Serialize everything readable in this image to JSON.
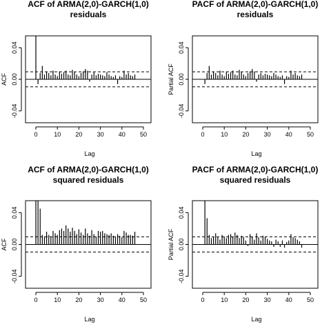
{
  "chart_data": [
    {
      "type": "bar",
      "title": [
        "ACF of ARMA(2,0)-GARCH(1,0)",
        "residuals"
      ],
      "xlabel": "Lag",
      "ylabel": "ACF",
      "xlim": [
        0,
        50
      ],
      "ylim": [
        -0.055,
        0.055
      ],
      "x_ticks": [
        "0",
        "10",
        "20",
        "30",
        "40",
        "50"
      ],
      "y_ticks": [
        "-0.04",
        "0.00",
        "0.04"
      ],
      "ci": 0.0095,
      "lags": [
        0,
        1,
        2,
        3,
        4,
        5,
        6,
        7,
        8,
        9,
        10,
        11,
        12,
        13,
        14,
        15,
        16,
        17,
        18,
        19,
        20,
        21,
        22,
        23,
        24,
        25,
        26,
        27,
        28,
        29,
        30,
        31,
        32,
        33,
        34,
        35,
        36,
        37,
        38,
        39,
        40,
        41,
        42,
        43,
        44,
        45,
        46
      ],
      "values": [
        0.055,
        -0.006,
        0.008,
        0.017,
        0.006,
        0.01,
        0.008,
        0.005,
        0.011,
        0.006,
        0.004,
        0.01,
        0.007,
        0.009,
        0.011,
        0.006,
        0.005,
        0.012,
        0.009,
        0.006,
        0.004,
        0.008,
        0.01,
        0.013,
        0.011,
        -0.003,
        0.006,
        0.009,
        0.005,
        0.007,
        0.006,
        0.005,
        0.004,
        0.009,
        0.006,
        0.004,
        0.003,
        0.005,
        -0.006,
        0.004,
        0.003,
        0.011,
        0.006,
        0.008,
        0.005,
        0.004,
        0.006
      ]
    },
    {
      "type": "bar",
      "title": [
        "PACF of ARMA(2,0)-GARCH(1,0)",
        "residuals"
      ],
      "xlabel": "Lag",
      "ylabel": "Partial ACF",
      "xlim": [
        0,
        50
      ],
      "ylim": [
        -0.055,
        0.055
      ],
      "x_ticks": [
        "0",
        "10",
        "20",
        "30",
        "40",
        "50"
      ],
      "y_ticks": [
        "-0.04",
        "0.00",
        "0.04"
      ],
      "ci": 0.0095,
      "lags": [
        1,
        2,
        3,
        4,
        5,
        6,
        7,
        8,
        9,
        10,
        11,
        12,
        13,
        14,
        15,
        16,
        17,
        18,
        19,
        20,
        21,
        22,
        23,
        24,
        25,
        26,
        27,
        28,
        29,
        30,
        31,
        32,
        33,
        34,
        35,
        36,
        37,
        38,
        39,
        40,
        41,
        42,
        43,
        44,
        45,
        46
      ],
      "values": [
        -0.006,
        0.008,
        0.017,
        0.006,
        0.01,
        0.008,
        0.005,
        0.011,
        0.006,
        0.004,
        0.01,
        0.007,
        0.009,
        0.011,
        0.006,
        0.005,
        0.012,
        0.009,
        0.006,
        0.004,
        0.008,
        0.01,
        0.013,
        0.01,
        -0.003,
        0.006,
        0.008,
        0.005,
        0.007,
        0.006,
        0.005,
        0.004,
        0.008,
        0.006,
        0.004,
        0.003,
        0.005,
        -0.006,
        0.004,
        0.003,
        0.011,
        0.006,
        0.008,
        0.005,
        0.004,
        0.006
      ]
    },
    {
      "type": "bar",
      "title": [
        "ACF of ARMA(2,0)-GARCH(1,0)",
        "squared residuals"
      ],
      "xlabel": "Lag",
      "ylabel": "ACF",
      "xlim": [
        0,
        50
      ],
      "ylim": [
        -0.055,
        0.055
      ],
      "x_ticks": [
        "0",
        "10",
        "20",
        "30",
        "40",
        "50"
      ],
      "y_ticks": [
        "-0.04",
        "0.00",
        "0.04"
      ],
      "ci": 0.0095,
      "lags": [
        0,
        1,
        2,
        3,
        4,
        5,
        6,
        7,
        8,
        9,
        10,
        11,
        12,
        13,
        14,
        15,
        16,
        17,
        18,
        19,
        20,
        21,
        22,
        23,
        24,
        25,
        26,
        27,
        28,
        29,
        30,
        31,
        32,
        33,
        34,
        35,
        36,
        37,
        38,
        39,
        40,
        41,
        42,
        43,
        44,
        45,
        46
      ],
      "values": [
        0.055,
        0.055,
        0.045,
        0.012,
        0.01,
        0.016,
        0.012,
        0.009,
        0.017,
        0.014,
        0.012,
        0.018,
        0.02,
        0.017,
        0.024,
        0.02,
        0.016,
        0.021,
        0.017,
        0.013,
        0.019,
        0.015,
        0.012,
        0.02,
        0.014,
        0.011,
        0.018,
        0.013,
        0.01,
        0.017,
        0.016,
        0.017,
        0.014,
        0.013,
        0.012,
        0.014,
        0.011,
        0.01,
        0.013,
        0.011,
        0.009,
        0.017,
        0.015,
        0.012,
        0.012,
        0.011,
        0.016
      ]
    },
    {
      "type": "bar",
      "title": [
        "PACF of ARMA(2,0)-GARCH(1,0)",
        "squared residuals"
      ],
      "xlabel": "Lag",
      "ylabel": "Partial ACF",
      "xlim": [
        0,
        50
      ],
      "ylim": [
        -0.055,
        0.055
      ],
      "x_ticks": [
        "0",
        "10",
        "20",
        "30",
        "40",
        "50"
      ],
      "y_ticks": [
        "-0.04",
        "0.00",
        "0.04"
      ],
      "ci": 0.0095,
      "lags": [
        1,
        2,
        3,
        4,
        5,
        6,
        7,
        8,
        9,
        10,
        11,
        12,
        13,
        14,
        15,
        16,
        17,
        18,
        19,
        20,
        21,
        22,
        23,
        24,
        25,
        26,
        27,
        28,
        29,
        30,
        31,
        32,
        33,
        34,
        35,
        36,
        37,
        38,
        39,
        40,
        41,
        42,
        43,
        44,
        45,
        46
      ],
      "values": [
        0.055,
        0.033,
        0.012,
        0.008,
        0.01,
        0.014,
        0.009,
        0.006,
        0.012,
        0.01,
        0.008,
        0.012,
        0.013,
        0.01,
        0.015,
        0.012,
        0.008,
        0.011,
        0.009,
        0.005,
        -0.002,
        0.013,
        0.01,
        0.006,
        0.014,
        0.009,
        0.005,
        0.011,
        0.01,
        0.007,
        0.005,
        0.004,
        -0.003,
        0.006,
        0.004,
        -0.003,
        0.005,
        -0.004,
        0.003,
        0.005,
        0.013,
        0.009,
        0.008,
        0.006,
        0.004,
        -0.004
      ]
    }
  ]
}
